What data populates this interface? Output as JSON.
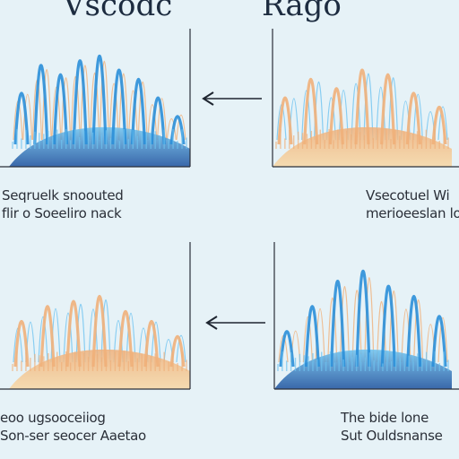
{
  "titles": {
    "left": "Vscodc",
    "right": "Rago"
  },
  "captions": [
    {
      "line1": "Seqruelk snoouted",
      "line2": "flir o Soeeliro nack"
    },
    {
      "line1": "Vsecotuel Wi",
      "line2": "merioeeslan loe"
    },
    {
      "line1": "eoo ugsooceiiog",
      "line2": "Son-ser seocer Aaetao"
    },
    {
      "line1": "The bide lone",
      "line2": "Sut Ouldsnanse"
    }
  ],
  "panels": [
    {
      "peaks": [
        0.55,
        0.85,
        0.75,
        0.9,
        0.95,
        0.8,
        0.7,
        0.5,
        0.3
      ],
      "style": "blue-front"
    },
    {
      "peaks": [
        0.5,
        0.7,
        0.6,
        0.8,
        0.75,
        0.55,
        0.4
      ],
      "style": "orange-front"
    },
    {
      "peaks": [
        0.45,
        0.6,
        0.65,
        0.7,
        0.55,
        0.45,
        0.3
      ],
      "style": "orange-front"
    },
    {
      "peaks": [
        0.35,
        0.6,
        0.85,
        0.95,
        0.8,
        0.7,
        0.5
      ],
      "style": "blue-front"
    }
  ],
  "colors": {
    "blueDark": "#1b4f9c",
    "blue": "#2b8fd8",
    "blueLight": "#6fc3f0",
    "orange": "#f0b07a",
    "orangeLight": "#f7d7a4",
    "axis": "#2a2f38"
  },
  "icons": {
    "arrow": "left-arrow-icon"
  }
}
